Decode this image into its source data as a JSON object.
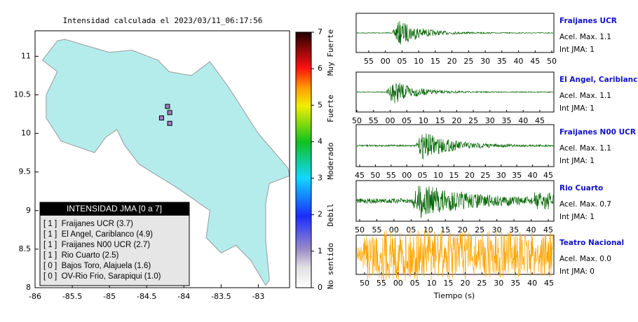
{
  "map": {
    "title": "Intensidad calculada el 2023/03/11_06:17:56",
    "xlim": [
      -86,
      -82.58
    ],
    "ylim": [
      8,
      11.33
    ],
    "xticks": [
      -86,
      -85.5,
      -85,
      -84.5,
      -84,
      -83.5,
      -83
    ],
    "yticks": [
      8,
      8.5,
      9,
      9.5,
      10,
      10.5,
      11
    ],
    "colorbar": {
      "lim": [
        0,
        7
      ],
      "ticks": [
        0,
        1,
        2,
        3,
        4,
        5,
        6,
        7
      ],
      "labels": [
        "No sentido",
        "Debil",
        "Moderado",
        "Fuerte",
        "Muy Fuerte"
      ]
    },
    "legend": {
      "title": "INTENSIDAD JMA [0 a 7]",
      "entries": [
        "[ 1 ]  Fraijanes UCR (3.7)",
        "[ 1 ]  El Angel, Cariblanco (4.9)",
        "[ 1 ]  Fraijanes N00 UCR (2.7)",
        "[ 1 ]  Rio Cuarto (2.5)",
        "[ 0 ]  Bajos Toro, Alajuela (1.6)",
        "[ 0 ]  OV-Rio Frio, Sarapiqui (1.0)"
      ]
    }
  },
  "seismograms": {
    "x_label": "Tiempo (s)",
    "panels": [
      {
        "title": "Fraijanes UCR",
        "accel": "Acel. Max. 1.1",
        "int": "Int JMA: 1",
        "color": "#006400",
        "ticks": [
          "55",
          "00",
          "05",
          "10",
          "15",
          "20",
          "25",
          "30",
          "35",
          "40",
          "45",
          "50"
        ]
      },
      {
        "title": "El Angel, Cariblanco",
        "accel": "Acel. Max. 1.1",
        "int": "Int JMA: 1",
        "color": "#006400",
        "ticks": [
          "50",
          "55",
          "00",
          "05",
          "10",
          "15",
          "20",
          "25",
          "30",
          "35",
          "40",
          "45"
        ]
      },
      {
        "title": "Fraijanes N00 UCR",
        "accel": "Acel. Max. 1.1",
        "int": "Int JMA: 1",
        "color": "#006400",
        "ticks": [
          "45",
          "50",
          "55",
          "00",
          "05",
          "10",
          "15",
          "20",
          "25",
          "30",
          "35",
          "40",
          "45"
        ]
      },
      {
        "title": "Rio Cuarto",
        "accel": "Acel. Max. 0.7",
        "int": "Int JMA: 1",
        "color": "#006400",
        "ticks": [
          "50",
          "55",
          "00",
          "05",
          "10",
          "15",
          "20",
          "25",
          "30",
          "35",
          "40",
          "45"
        ]
      },
      {
        "title": "Teatro Nacional",
        "accel": "Acel. Max. 0.0",
        "int": "Int JMA: 0",
        "color": "#ffa500",
        "ticks": [
          "50",
          "55",
          "00",
          "05",
          "10",
          "15",
          "20",
          "25",
          "30",
          "35",
          "40",
          "45"
        ]
      }
    ]
  }
}
